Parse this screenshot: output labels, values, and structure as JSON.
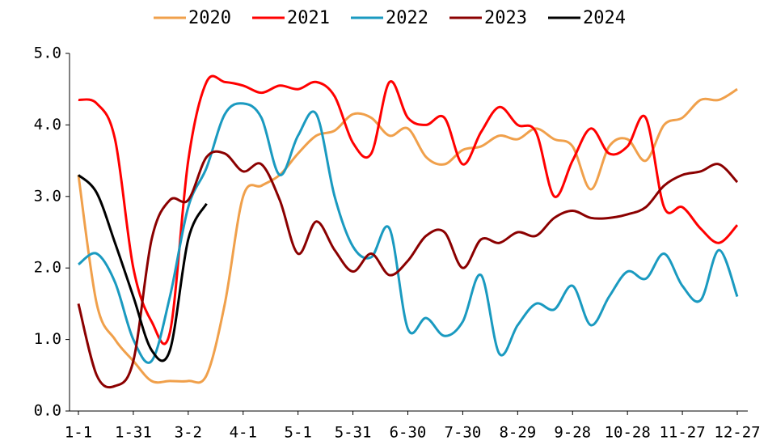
{
  "chart_data": {
    "type": "line",
    "categories": [
      "1-1",
      null,
      null,
      "1-31",
      null,
      null,
      "3-2",
      null,
      null,
      "4-1",
      null,
      null,
      "5-1",
      null,
      null,
      "5-31",
      null,
      null,
      "6-30",
      null,
      null,
      "7-30",
      null,
      null,
      "8-29",
      null,
      null,
      "9-28",
      null,
      null,
      "10-28",
      null,
      null,
      "11-27",
      null,
      null,
      "12-27"
    ],
    "ylim": [
      0,
      5
    ],
    "yticks": [
      {
        "value": 0,
        "label": "0.0"
      },
      {
        "value": 1,
        "label": "1.0"
      },
      {
        "value": 2,
        "label": "2.0"
      },
      {
        "value": 3,
        "label": "3.0"
      },
      {
        "value": 4,
        "label": "4.0"
      },
      {
        "value": 5,
        "label": "5.0"
      }
    ],
    "grid": false,
    "legend": "top",
    "series": [
      {
        "name": "2020",
        "color": "#f0a04b",
        "values": [
          3.3,
          1.5,
          1.0,
          0.7,
          0.42,
          0.42,
          0.42,
          0.5,
          1.5,
          3.0,
          3.15,
          3.3,
          3.6,
          3.85,
          3.92,
          4.15,
          4.1,
          3.85,
          3.95,
          3.55,
          3.45,
          3.65,
          3.7,
          3.85,
          3.8,
          3.95,
          3.8,
          3.7,
          3.1,
          3.7,
          3.8,
          3.5,
          4.0,
          4.1,
          4.35,
          4.35,
          4.5
        ]
      },
      {
        "name": "2021",
        "color": "#ff0000",
        "values": [
          4.35,
          4.3,
          3.8,
          2.0,
          1.25,
          1.1,
          3.5,
          4.6,
          4.6,
          4.55,
          4.45,
          4.55,
          4.5,
          4.6,
          4.4,
          3.75,
          3.6,
          4.6,
          4.1,
          4.0,
          4.1,
          3.45,
          3.9,
          4.25,
          4.0,
          3.9,
          3.0,
          3.5,
          3.95,
          3.6,
          3.7,
          4.1,
          2.85,
          2.85,
          2.55,
          2.35,
          2.6
        ]
      },
      {
        "name": "2022",
        "color": "#1a9ac0",
        "values": [
          2.05,
          2.2,
          1.8,
          1.0,
          0.7,
          1.6,
          2.85,
          3.4,
          4.15,
          4.3,
          4.1,
          3.3,
          3.85,
          4.15,
          3.0,
          2.3,
          2.15,
          2.55,
          1.15,
          1.3,
          1.05,
          1.25,
          1.9,
          0.8,
          1.2,
          1.5,
          1.42,
          1.75,
          1.2,
          1.6,
          1.95,
          1.85,
          2.2,
          1.75,
          1.55,
          2.25,
          1.6
        ]
      },
      {
        "name": "2023",
        "color": "#8b0000",
        "values": [
          1.5,
          0.5,
          0.35,
          0.7,
          2.4,
          2.95,
          2.95,
          3.55,
          3.6,
          3.35,
          3.45,
          2.95,
          2.2,
          2.65,
          2.25,
          1.95,
          2.2,
          1.9,
          2.1,
          2.45,
          2.5,
          2.0,
          2.4,
          2.35,
          2.5,
          2.45,
          2.7,
          2.8,
          2.7,
          2.7,
          2.75,
          2.85,
          3.15,
          3.3,
          3.35,
          3.45,
          3.2
        ]
      },
      {
        "name": "2024",
        "color": "#000000",
        "values": [
          3.3,
          3.05,
          2.35,
          1.6,
          0.85,
          0.85,
          2.4,
          2.9,
          null,
          null,
          null,
          null,
          null,
          null,
          null,
          null,
          null,
          null,
          null,
          null,
          null,
          null,
          null,
          null,
          null,
          null,
          null,
          null,
          null,
          null,
          null,
          null,
          null,
          null,
          null,
          null,
          null
        ]
      }
    ]
  }
}
